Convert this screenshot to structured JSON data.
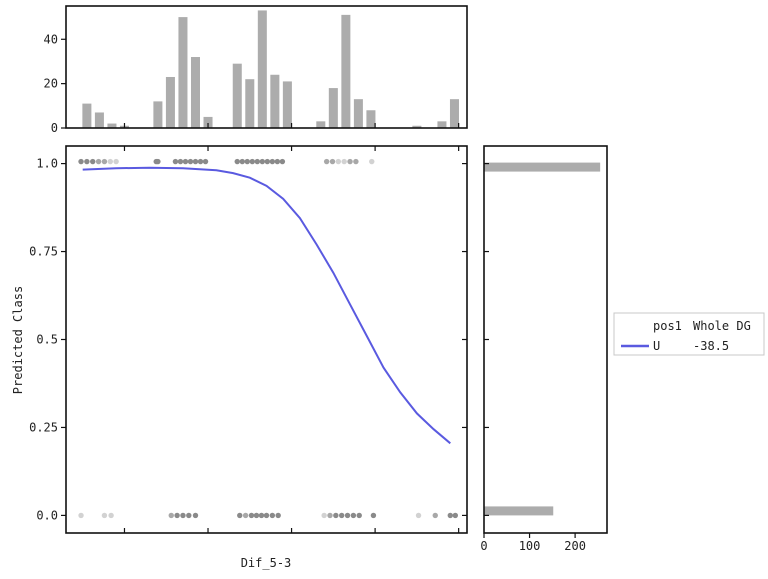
{
  "chart_data": [
    {
      "type": "bar",
      "name": "top-histogram",
      "ylim": [
        0,
        55
      ],
      "yticks": [
        "0",
        "20",
        "40"
      ],
      "bins": [
        {
          "x": -19.5,
          "v": 11
        },
        {
          "x": -18.0,
          "v": 7
        },
        {
          "x": -16.5,
          "v": 2
        },
        {
          "x": -15.0,
          "v": 1
        },
        {
          "x": -11.0,
          "v": 12
        },
        {
          "x": -9.5,
          "v": 23
        },
        {
          "x": -8.0,
          "v": 50
        },
        {
          "x": -6.5,
          "v": 32
        },
        {
          "x": -5.0,
          "v": 5
        },
        {
          "x": -1.5,
          "v": 29
        },
        {
          "x": 0.0,
          "v": 22
        },
        {
          "x": 1.5,
          "v": 53
        },
        {
          "x": 3.0,
          "v": 24
        },
        {
          "x": 4.5,
          "v": 21
        },
        {
          "x": 8.5,
          "v": 3
        },
        {
          "x": 10.0,
          "v": 18
        },
        {
          "x": 11.5,
          "v": 51
        },
        {
          "x": 13.0,
          "v": 13
        },
        {
          "x": 14.5,
          "v": 8
        },
        {
          "x": 20.0,
          "v": 1
        },
        {
          "x": 23.0,
          "v": 3
        },
        {
          "x": 24.5,
          "v": 13
        }
      ]
    },
    {
      "type": "line",
      "name": "main-logistic",
      "xlabel": "Dif_5-3",
      "ylabel": "Predicted Class",
      "xlim": [
        -22,
        26
      ],
      "ylim": [
        -0.05,
        1.05
      ],
      "yticks": [
        0.0,
        0.25,
        0.5,
        0.75,
        1.0
      ],
      "ytick_labels": [
        "0.0",
        "0.25",
        "0.5",
        "0.75",
        "1.0"
      ],
      "xticks": [
        -15,
        -5,
        5,
        15,
        25
      ],
      "series": [
        {
          "name": "U",
          "color": "#5a5ae0",
          "x": [
            -20,
            -16,
            -12,
            -8,
            -4,
            -2,
            0,
            2,
            4,
            6,
            8,
            10,
            12,
            14,
            16,
            18,
            20,
            22,
            24
          ],
          "y": [
            0.983,
            0.987,
            0.988,
            0.987,
            0.981,
            0.973,
            0.96,
            0.937,
            0.9,
            0.845,
            0.77,
            0.69,
            0.6,
            0.51,
            0.42,
            0.35,
            0.29,
            0.245,
            0.205
          ]
        }
      ],
      "scatter": {
        "y1_points": [
          {
            "x": -20.2,
            "s": "d"
          },
          {
            "x": -19.5,
            "s": "d"
          },
          {
            "x": -18.8,
            "s": "d"
          },
          {
            "x": -18.1,
            "s": "m"
          },
          {
            "x": -17.4,
            "s": "m"
          },
          {
            "x": -16.7,
            "s": "l"
          },
          {
            "x": -16.0,
            "s": "l"
          },
          {
            "x": -11.2,
            "s": "d"
          },
          {
            "x": -11.0,
            "s": "d"
          },
          {
            "x": -8.9,
            "s": "d"
          },
          {
            "x": -8.3,
            "s": "d"
          },
          {
            "x": -7.7,
            "s": "d"
          },
          {
            "x": -7.1,
            "s": "d"
          },
          {
            "x": -6.5,
            "s": "d"
          },
          {
            "x": -5.9,
            "s": "d"
          },
          {
            "x": -5.3,
            "s": "d"
          },
          {
            "x": -1.5,
            "s": "d"
          },
          {
            "x": -0.9,
            "s": "d"
          },
          {
            "x": -0.3,
            "s": "d"
          },
          {
            "x": 0.3,
            "s": "d"
          },
          {
            "x": 0.9,
            "s": "d"
          },
          {
            "x": 1.5,
            "s": "d"
          },
          {
            "x": 2.1,
            "s": "d"
          },
          {
            "x": 2.7,
            "s": "d"
          },
          {
            "x": 3.3,
            "s": "d"
          },
          {
            "x": 3.9,
            "s": "d"
          },
          {
            "x": 9.2,
            "s": "m"
          },
          {
            "x": 9.9,
            "s": "m"
          },
          {
            "x": 10.6,
            "s": "l"
          },
          {
            "x": 11.3,
            "s": "l"
          },
          {
            "x": 12.0,
            "s": "m"
          },
          {
            "x": 12.7,
            "s": "m"
          },
          {
            "x": 14.6,
            "s": "l"
          }
        ],
        "y0_points": [
          {
            "x": -20.2,
            "s": "l"
          },
          {
            "x": -17.4,
            "s": "l"
          },
          {
            "x": -16.6,
            "s": "l"
          },
          {
            "x": -9.4,
            "s": "m"
          },
          {
            "x": -8.7,
            "s": "d"
          },
          {
            "x": -8.0,
            "s": "d"
          },
          {
            "x": -7.3,
            "s": "d"
          },
          {
            "x": -6.5,
            "s": "d"
          },
          {
            "x": -1.2,
            "s": "d"
          },
          {
            "x": -0.5,
            "s": "m"
          },
          {
            "x": 0.2,
            "s": "d"
          },
          {
            "x": 0.8,
            "s": "d"
          },
          {
            "x": 1.4,
            "s": "d"
          },
          {
            "x": 2.0,
            "s": "d"
          },
          {
            "x": 2.7,
            "s": "d"
          },
          {
            "x": 3.4,
            "s": "d"
          },
          {
            "x": 8.9,
            "s": "l"
          },
          {
            "x": 9.6,
            "s": "m"
          },
          {
            "x": 10.3,
            "s": "d"
          },
          {
            "x": 11.0,
            "s": "d"
          },
          {
            "x": 11.7,
            "s": "d"
          },
          {
            "x": 12.4,
            "s": "d"
          },
          {
            "x": 13.1,
            "s": "d"
          },
          {
            "x": 14.8,
            "s": "d"
          },
          {
            "x": 20.2,
            "s": "l"
          },
          {
            "x": 22.2,
            "s": "m"
          },
          {
            "x": 24.0,
            "s": "d"
          },
          {
            "x": 24.6,
            "s": "d"
          }
        ]
      }
    },
    {
      "type": "bar",
      "name": "right-histogram",
      "orientation": "horizontal",
      "xlim": [
        0,
        270
      ],
      "xticks": [
        "0",
        "100",
        "200"
      ],
      "bars": [
        {
          "class": "1.0",
          "value": 255
        },
        {
          "class": "0.0",
          "value": 152
        }
      ]
    }
  ],
  "legend": {
    "header_col1": "pos1",
    "header_col2": "Whole DG",
    "entries": [
      {
        "label": "U",
        "value": "-38.5",
        "color": "#5a5ae0"
      }
    ]
  },
  "colors": {
    "bar": "#acacac",
    "line": "#5a5ae0",
    "dark_point": "#8a8a8a",
    "mid_point": "#a8a8a8",
    "light_point": "#d2d2d2"
  }
}
